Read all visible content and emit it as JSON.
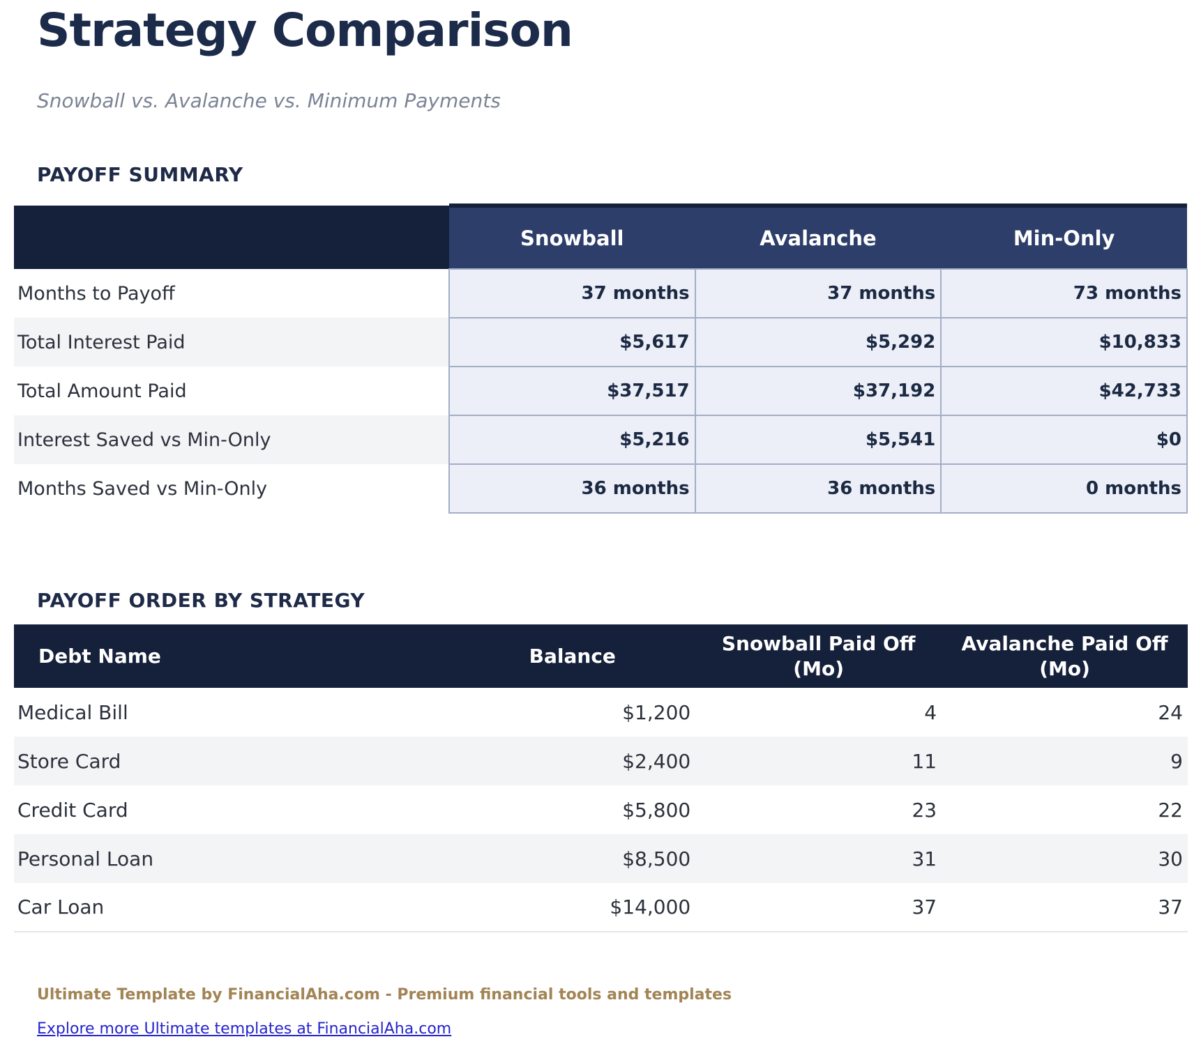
{
  "page": {
    "title": "Strategy Comparison",
    "subtitle": "Snowball vs. Avalanche vs. Minimum Payments"
  },
  "colors": {
    "header_dark_navy": "#15203a",
    "header_strategy_navy": "#2c3e69",
    "value_cell_bg": "#eceff7",
    "cell_border": "#a3adc6",
    "stripe_gray": "#f3f4f6",
    "heading_navy": "#1e2a47",
    "branding_brown": "#a28455",
    "link_blue": "#2323cd"
  },
  "summary": {
    "heading": "PAYOFF SUMMARY",
    "columns": [
      "Snowball",
      "Avalanche",
      "Min-Only"
    ],
    "rows": [
      {
        "label": "Months to Payoff",
        "values": [
          "37 months",
          "37 months",
          "73 months"
        ]
      },
      {
        "label": "Total Interest Paid",
        "values": [
          "$5,617",
          "$5,292",
          "$10,833"
        ]
      },
      {
        "label": "Total Amount Paid",
        "values": [
          "$37,517",
          "$37,192",
          "$42,733"
        ]
      },
      {
        "label": "Interest Saved vs Min-Only",
        "values": [
          "$5,216",
          "$5,541",
          "$0"
        ]
      },
      {
        "label": "Months Saved vs Min-Only",
        "values": [
          "36 months",
          "36 months",
          "0 months"
        ]
      }
    ]
  },
  "payoff_order": {
    "heading": "PAYOFF ORDER BY STRATEGY",
    "columns": [
      "Debt Name",
      "Balance",
      "Snowball Paid Off (Mo)",
      "Avalanche Paid Off (Mo)"
    ],
    "rows": [
      {
        "debt": "Medical Bill",
        "balance": "$1,200",
        "snowball_mo": "4",
        "avalanche_mo": "24"
      },
      {
        "debt": "Store Card",
        "balance": "$2,400",
        "snowball_mo": "11",
        "avalanche_mo": "9"
      },
      {
        "debt": "Credit Card",
        "balance": "$5,800",
        "snowball_mo": "23",
        "avalanche_mo": "22"
      },
      {
        "debt": "Personal Loan",
        "balance": "$8,500",
        "snowball_mo": "31",
        "avalanche_mo": "30"
      },
      {
        "debt": "Car Loan",
        "balance": "$14,000",
        "snowball_mo": "37",
        "avalanche_mo": "37"
      }
    ]
  },
  "footer": {
    "branding": "Ultimate Template by FinancialAha.com - Premium financial tools and templates",
    "link_text": "Explore more Ultimate templates at FinancialAha.com"
  }
}
